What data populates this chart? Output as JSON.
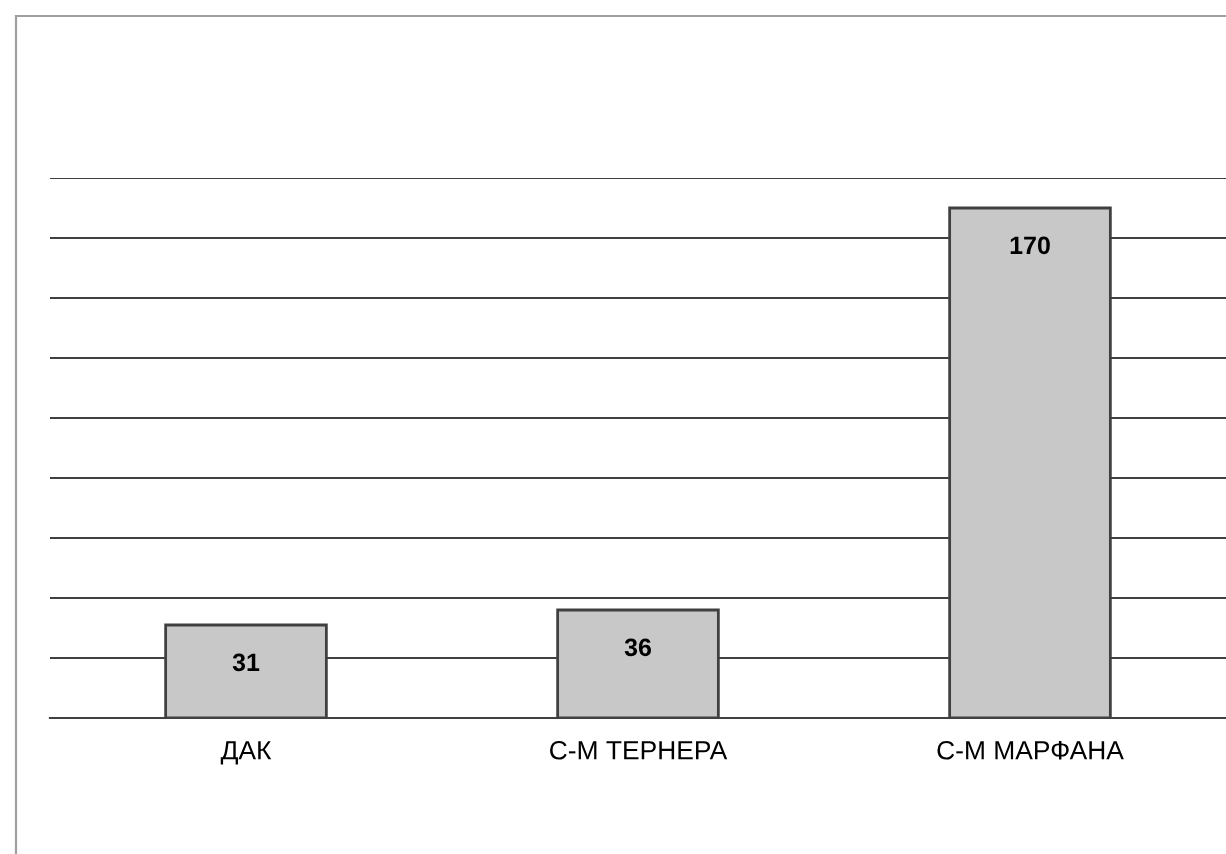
{
  "chart_data": {
    "type": "bar",
    "categories": [
      "ДАК",
      "С-М ТЕРНЕРА",
      "С-М МАРФАНА"
    ],
    "values": [
      31,
      36,
      170
    ],
    "color": "#c8c8c8",
    "data_labels": true,
    "grid": "y",
    "ylim": [
      0,
      180
    ],
    "yticks": [
      {
        "value": 0,
        "label": null
      },
      {
        "value": 20,
        "label": null
      },
      {
        "value": 40,
        "label": null
      },
      {
        "value": 60,
        "label": null
      },
      {
        "value": 80,
        "label": null
      },
      {
        "value": 100,
        "label": null
      },
      {
        "value": 120,
        "label": null
      },
      {
        "value": 140,
        "label": null
      },
      {
        "value": 160,
        "label": null
      },
      {
        "value": 180,
        "label": null
      }
    ]
  }
}
